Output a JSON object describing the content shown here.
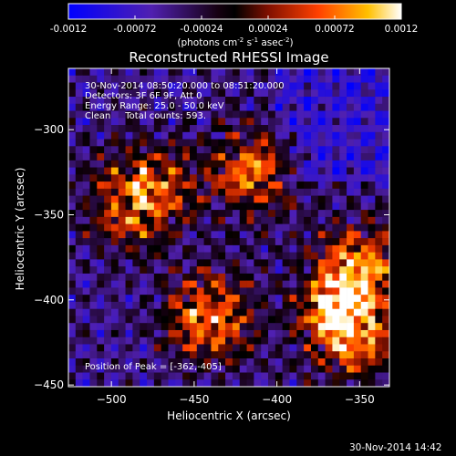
{
  "colorbar": {
    "ticks": [
      "-0.0012",
      "-0.00072",
      "-0.00024",
      "0.00024",
      "0.00072",
      "0.0012"
    ],
    "unit_label": "(photons cm",
    "unit_exp1": "-2",
    "unit_s": " s",
    "unit_exp2": "-1",
    "unit_asec": " asec",
    "unit_exp3": "-2",
    "unit_close": ")"
  },
  "chart_data": {
    "type": "heatmap",
    "title": "Reconstructed RHESSI Image",
    "xlabel": "Heliocentric X (arcsec)",
    "ylabel": "Heliocentric Y (arcsec)",
    "xlim": [
      -526,
      -332
    ],
    "ylim": [
      -451,
      -264
    ],
    "xticks": [
      -500,
      -450,
      -400,
      -350
    ],
    "yticks": [
      -300,
      -350,
      -400,
      -450
    ],
    "colorbar_range": [
      -0.0012,
      0.0012
    ],
    "sources": [
      {
        "x": -362,
        "y": -405,
        "intensity": 1.0
      },
      {
        "x": -440,
        "y": -410,
        "intensity": 0.9
      },
      {
        "x": -415,
        "y": -325,
        "intensity": 0.8
      },
      {
        "x": -490,
        "y": -345,
        "intensity": 0.75
      },
      {
        "x": -350,
        "y": -380,
        "intensity": 0.7
      },
      {
        "x": -470,
        "y": -330,
        "intensity": 0.45
      },
      {
        "x": -350,
        "y": -430,
        "intensity": 0.5
      }
    ],
    "peak": {
      "x": -362,
      "y": -405
    }
  },
  "annotations": {
    "time_range": "30-Nov-2014 08:50:20.000 to 08:51:20.000",
    "detectors": "Detectors: 3F 6F 9F, Att 0",
    "energy": "Energy Range: 25.0 - 50.0 keV",
    "clean": "Clean     Total counts: 593.",
    "peak": "Position of Peak = [-362,-405]"
  },
  "footer": {
    "timestamp": "30-Nov-2014 14:42"
  }
}
